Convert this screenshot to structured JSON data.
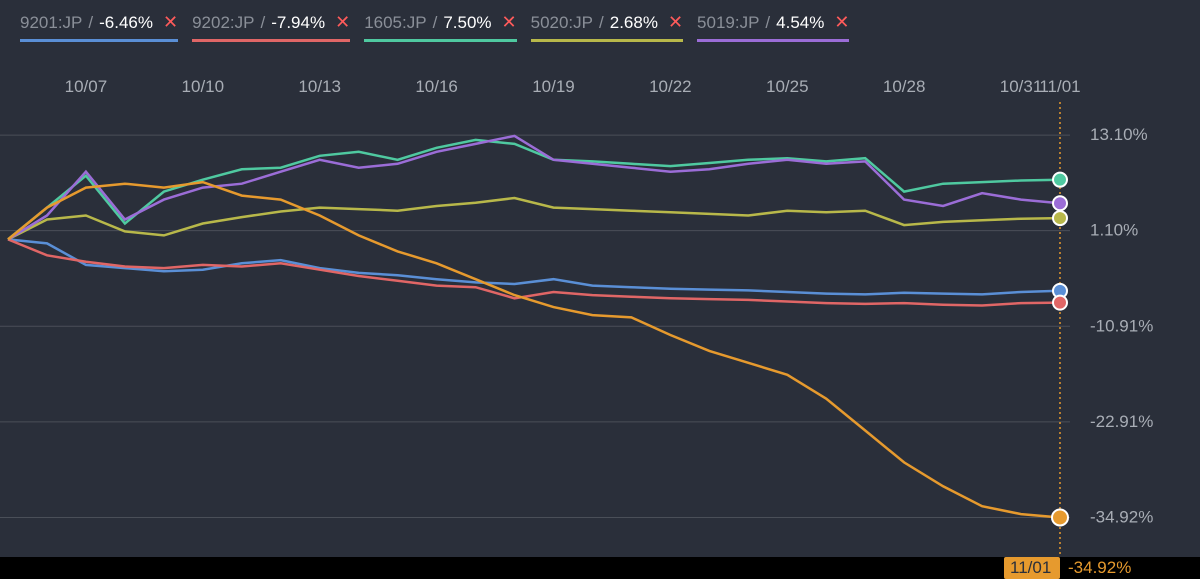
{
  "background_color": "#2a2f3a",
  "grid_color": "#4a4f58",
  "chart": {
    "type": "line",
    "ylim": [
      -38,
      16
    ],
    "yticks": [
      {
        "v": 13.1,
        "label": "13.10%"
      },
      {
        "v": 1.1,
        "label": "1.10%"
      },
      {
        "v": -10.91,
        "label": "-10.91%"
      },
      {
        "v": -22.91,
        "label": "-22.91%"
      },
      {
        "v": -34.92,
        "label": "-34.92%"
      }
    ],
    "xlabels": [
      "10/07",
      "10/10",
      "10/13",
      "10/16",
      "10/19",
      "10/22",
      "10/25",
      "10/28",
      "10/31",
      "11/01"
    ],
    "xlabel_idx": [
      2,
      5,
      8,
      11,
      14,
      17,
      20,
      23,
      26,
      27
    ],
    "npoints": 28,
    "cursor_idx": 27,
    "cursor_date": "11/01",
    "cursor_value": "-34.92%",
    "cursor_color": "#e69a2e"
  },
  "legend": [
    {
      "ticker": "9201:JP",
      "value": "-6.46%",
      "neg": true,
      "color": "#5a8fd6"
    },
    {
      "ticker": "9202:JP",
      "value": "-7.94%",
      "neg": true,
      "color": "#e06666"
    },
    {
      "ticker": "1605:JP",
      "value": "7.50%",
      "neg": false,
      "color": "#4fc9a0"
    },
    {
      "ticker": "5020:JP",
      "value": "2.68%",
      "neg": false,
      "color": "#b8b84a"
    },
    {
      "ticker": "5019:JP",
      "value": "4.54%",
      "neg": false,
      "color": "#9b6dd7"
    }
  ],
  "series": [
    {
      "name": "9201:JP",
      "color": "#5a8fd6",
      "end_dot": true,
      "y": [
        0,
        -0.5,
        -3.2,
        -3.6,
        -4.0,
        -3.8,
        -3.0,
        -2.6,
        -3.6,
        -4.2,
        -4.5,
        -5.0,
        -5.4,
        -5.6,
        -5.0,
        -5.8,
        -6.0,
        -6.2,
        -6.3,
        -6.4,
        -6.6,
        -6.8,
        -6.9,
        -6.7,
        -6.8,
        -6.9,
        -6.6,
        -6.46
      ]
    },
    {
      "name": "9202:JP",
      "color": "#e06666",
      "end_dot": true,
      "y": [
        0,
        -2.0,
        -2.8,
        -3.4,
        -3.6,
        -3.2,
        -3.4,
        -3.0,
        -3.8,
        -4.6,
        -5.2,
        -5.8,
        -6.0,
        -7.4,
        -6.6,
        -7.0,
        -7.2,
        -7.4,
        -7.5,
        -7.6,
        -7.8,
        -8.0,
        -8.1,
        -8.0,
        -8.2,
        -8.3,
        -8.0,
        -7.94
      ]
    },
    {
      "name": "1605:JP",
      "color": "#4fc9a0",
      "end_dot": true,
      "y": [
        0,
        4.0,
        8.0,
        2.0,
        6.0,
        7.5,
        8.8,
        9.0,
        10.5,
        11.0,
        10.0,
        11.5,
        12.5,
        12.0,
        10.0,
        9.8,
        9.5,
        9.2,
        9.6,
        10.0,
        10.2,
        9.8,
        10.2,
        6.0,
        7.0,
        7.2,
        7.4,
        7.5
      ]
    },
    {
      "name": "5020:JP",
      "color": "#b8b84a",
      "end_dot": true,
      "y": [
        0,
        2.5,
        3.0,
        1.0,
        0.5,
        2.0,
        2.8,
        3.5,
        4.0,
        3.8,
        3.6,
        4.2,
        4.6,
        5.2,
        4.0,
        3.8,
        3.6,
        3.4,
        3.2,
        3.0,
        3.6,
        3.4,
        3.6,
        1.8,
        2.2,
        2.4,
        2.6,
        2.68
      ]
    },
    {
      "name": "5019:JP",
      "color": "#9b6dd7",
      "end_dot": true,
      "y": [
        0,
        3.0,
        8.5,
        2.5,
        5.0,
        6.5,
        7.0,
        8.5,
        10.0,
        9.0,
        9.5,
        11.0,
        12.0,
        13.0,
        10.0,
        9.5,
        9.0,
        8.5,
        8.8,
        9.5,
        10.0,
        9.5,
        9.8,
        5.0,
        4.2,
        5.8,
        5.0,
        4.54
      ]
    },
    {
      "name": "highlight",
      "color": "#e69a2e",
      "end_dot": true,
      "big_dot": true,
      "y": [
        0,
        4.0,
        6.5,
        7.0,
        6.5,
        7.2,
        5.5,
        5.0,
        3.0,
        0.5,
        -1.5,
        -3.0,
        -5.0,
        -7.0,
        -8.5,
        -9.5,
        -9.8,
        -12.0,
        -14.0,
        -15.5,
        -17.0,
        -20.0,
        -24.0,
        -28.0,
        -31.0,
        -33.5,
        -34.5,
        -34.92
      ]
    }
  ]
}
